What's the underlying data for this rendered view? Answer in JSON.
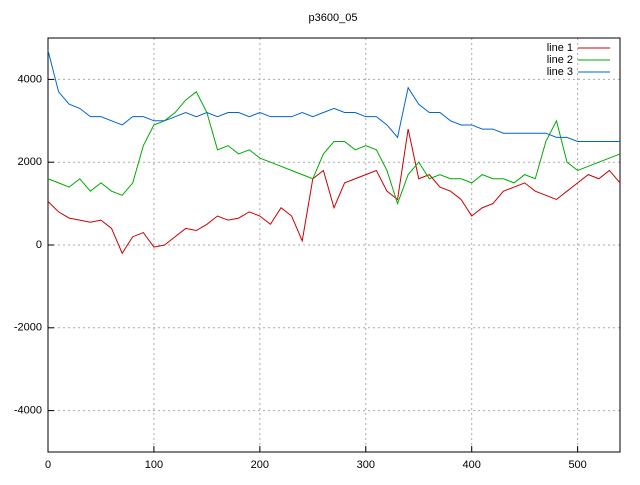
{
  "chart_data": {
    "type": "line",
    "title": "p3600_05",
    "x": [
      0,
      10,
      20,
      30,
      40,
      50,
      60,
      70,
      80,
      90,
      100,
      110,
      120,
      130,
      140,
      150,
      160,
      170,
      180,
      190,
      200,
      210,
      220,
      230,
      240,
      250,
      260,
      270,
      280,
      290,
      300,
      310,
      320,
      330,
      340,
      350,
      360,
      370,
      380,
      390,
      400,
      410,
      420,
      430,
      440,
      450,
      460,
      470,
      480,
      490,
      500,
      510,
      520,
      530,
      540
    ],
    "series": [
      {
        "name": "line 1",
        "color": "#cc0000",
        "values": [
          1050,
          800,
          650,
          600,
          550,
          600,
          400,
          -200,
          200,
          300,
          -50,
          0,
          200,
          400,
          350,
          500,
          700,
          600,
          650,
          800,
          700,
          500,
          900,
          700,
          100,
          1600,
          1800,
          900,
          1500,
          1600,
          1700,
          1800,
          1300,
          1100,
          2800,
          1600,
          1700,
          1400,
          1300,
          1100,
          700,
          900,
          1000,
          1300,
          1400,
          1500,
          1300,
          1200,
          1100,
          1300,
          1500,
          1700,
          1600,
          1800,
          1500
        ]
      },
      {
        "name": "line 2",
        "color": "#00aa00",
        "values": [
          1600,
          1500,
          1400,
          1600,
          1300,
          1500,
          1300,
          1200,
          1500,
          2400,
          2900,
          3000,
          3200,
          3500,
          3700,
          3200,
          2300,
          2400,
          2200,
          2300,
          2100,
          2000,
          1900,
          1800,
          1700,
          1600,
          2200,
          2500,
          2500,
          2300,
          2400,
          2300,
          1800,
          1000,
          1700,
          2000,
          1600,
          1700,
          1600,
          1600,
          1500,
          1700,
          1600,
          1600,
          1500,
          1700,
          1600,
          2500,
          3000,
          2000,
          1800,
          1900,
          2000,
          2100,
          2200
        ]
      },
      {
        "name": "line 3",
        "color": "#0066cc",
        "values": [
          4700,
          3700,
          3400,
          3300,
          3100,
          3100,
          3000,
          2900,
          3100,
          3100,
          3000,
          3000,
          3100,
          3200,
          3100,
          3200,
          3100,
          3200,
          3200,
          3100,
          3200,
          3100,
          3100,
          3100,
          3200,
          3100,
          3200,
          3300,
          3200,
          3200,
          3100,
          3100,
          2900,
          2600,
          3800,
          3400,
          3200,
          3200,
          3000,
          2900,
          2900,
          2800,
          2800,
          2700,
          2700,
          2700,
          2700,
          2700,
          2600,
          2600,
          2500,
          2500,
          2500,
          2500,
          2500
        ]
      }
    ],
    "xlim": [
      0,
      540
    ],
    "xticks": [
      0,
      100,
      200,
      300,
      400,
      500
    ],
    "ylim": [
      -5000,
      5000
    ],
    "yticks": [
      -4000,
      -2000,
      0,
      2000,
      4000
    ],
    "grid": true,
    "legend": "top-right"
  }
}
